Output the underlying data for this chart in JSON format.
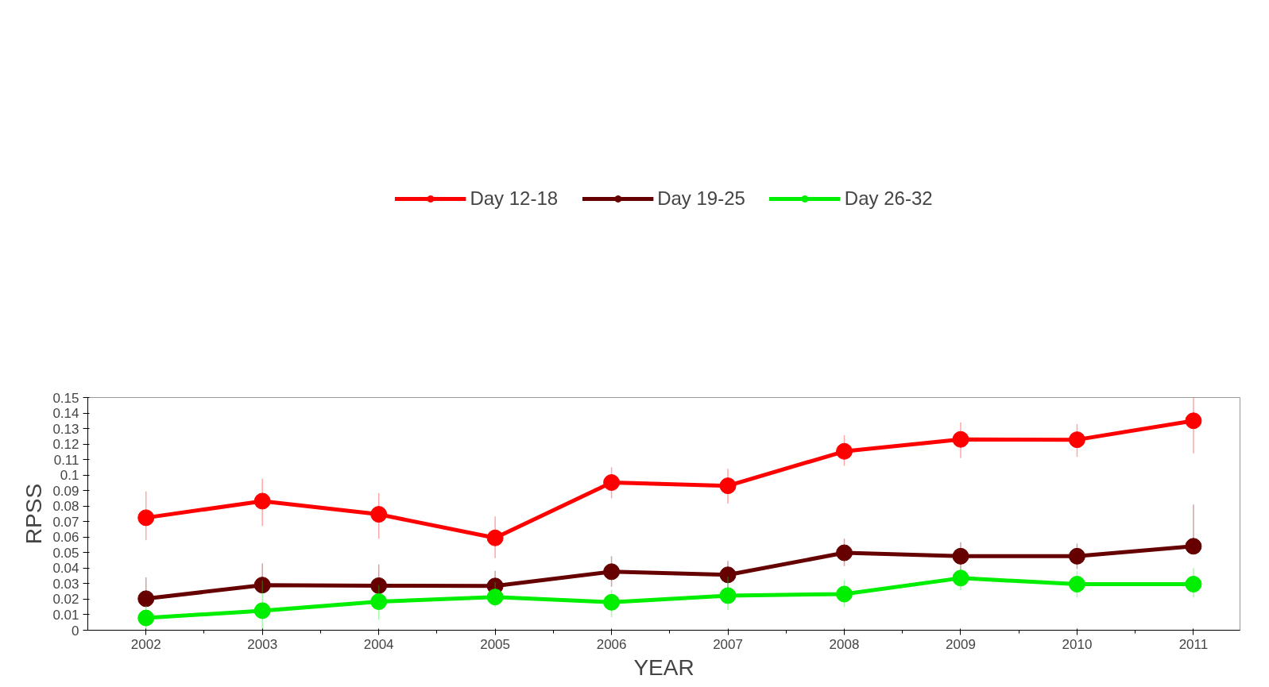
{
  "chart_data": {
    "type": "line",
    "xlabel": "YEAR",
    "ylabel": "RPSS",
    "x": [
      2002,
      2003,
      2004,
      2005,
      2006,
      2007,
      2008,
      2009,
      2010,
      2011
    ],
    "series": [
      {
        "name": "Day 12-18",
        "color": "#ff0000",
        "values": [
          0.0725,
          0.0832,
          0.0747,
          0.0595,
          0.0952,
          0.0931,
          0.1153,
          0.123,
          0.1228,
          0.135
        ],
        "errors": [
          [
            0.058,
            0.0895
          ],
          [
            0.0672,
            0.0976
          ],
          [
            0.059,
            0.0884
          ],
          [
            0.0464,
            0.0734
          ],
          [
            0.085,
            0.105
          ],
          [
            0.0817,
            0.104
          ],
          [
            0.106,
            0.1256
          ],
          [
            0.111,
            0.134
          ],
          [
            0.1117,
            0.133
          ],
          [
            0.114,
            0.15
          ]
        ]
      },
      {
        "name": "Day 19-25",
        "color": "#660000",
        "values": [
          0.0203,
          0.0291,
          0.0287,
          0.0285,
          0.0377,
          0.0357,
          0.0499,
          0.0477,
          0.0477,
          0.0541
        ],
        "errors": [
          [
            0.0203,
            0.034
          ],
          [
            0.0291,
            0.043
          ],
          [
            0.015,
            0.0424
          ],
          [
            0.0285,
            0.0383
          ],
          [
            0.028,
            0.0477
          ],
          [
            0.027,
            0.0447
          ],
          [
            0.0413,
            0.059
          ],
          [
            0.039,
            0.0567
          ],
          [
            0.0394,
            0.0558
          ],
          [
            0.0541,
            0.081
          ]
        ]
      },
      {
        "name": "Day 26-32",
        "color": "#00ee00",
        "values": [
          0.0079,
          0.0126,
          0.0184,
          0.0214,
          0.018,
          0.0223,
          0.0233,
          0.0336,
          0.0297,
          0.0297
        ],
        "errors": [
          [
            0,
            0.016
          ],
          [
            0,
            0.032
          ],
          [
            0.0066,
            0.029
          ],
          [
            0.015,
            0.031
          ],
          [
            0.0083,
            0.026
          ],
          [
            0.013,
            0.0345
          ],
          [
            0.0148,
            0.0323
          ],
          [
            0.0259,
            0.0398
          ],
          [
            0.021,
            0.038
          ],
          [
            0.021,
            0.04
          ]
        ]
      }
    ],
    "xlim": [
      2001.5,
      2011.4
    ],
    "xticks": [
      2002,
      2003,
      2004,
      2005,
      2006,
      2007,
      2008,
      2009,
      2010,
      2011
    ],
    "ylim": [
      0,
      0.15
    ],
    "yticks": [
      0,
      0.01,
      0.02,
      0.03,
      0.04,
      0.05,
      0.06,
      0.07,
      0.08,
      0.09,
      0.1,
      0.11,
      0.12,
      0.13,
      0.14,
      0.15
    ],
    "grid": false,
    "legend": "top",
    "marker": "circle",
    "line_style": "solid"
  }
}
